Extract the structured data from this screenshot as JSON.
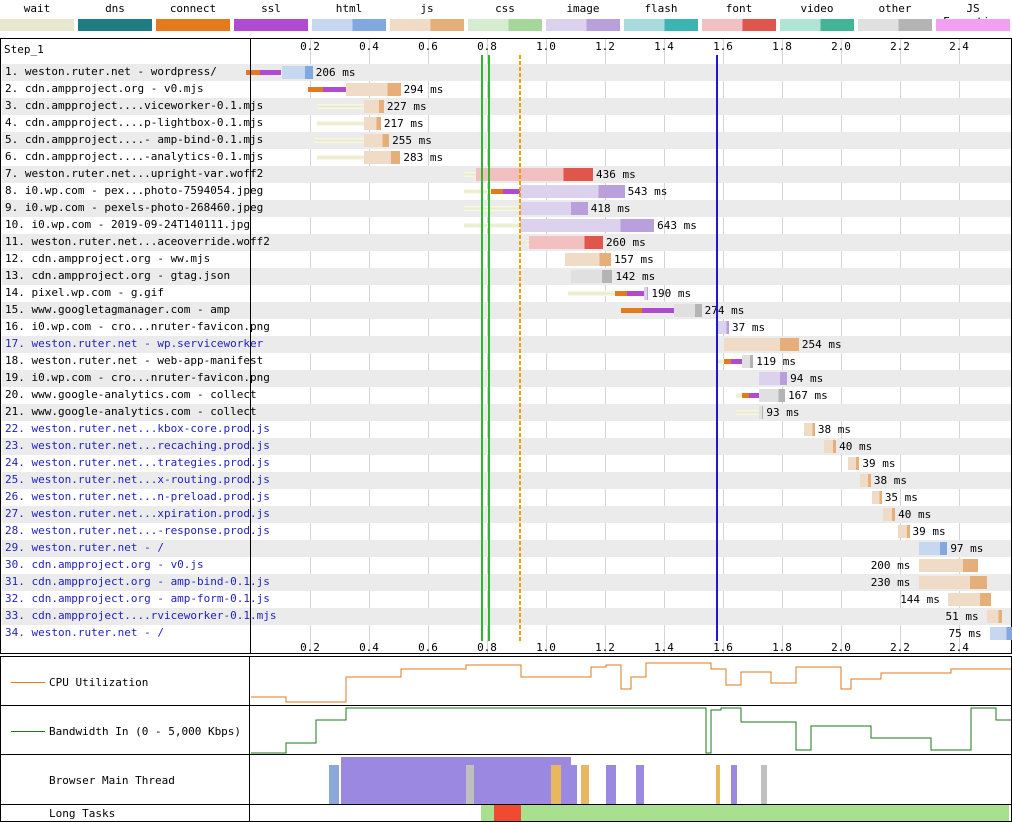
{
  "legend": [
    {
      "label": "wait",
      "color": "#e8e8d0",
      "color2": "#e8e8d0"
    },
    {
      "label": "dns",
      "color": "#1f7c83",
      "color2": "#1f7c83"
    },
    {
      "label": "connect",
      "color": "#e47a1c",
      "color2": "#e47a1c"
    },
    {
      "label": "ssl",
      "color": "#b04ad0",
      "color2": "#b04ad0"
    },
    {
      "label": "html",
      "color": "#c6d7f0",
      "color2": "#82a8e0"
    },
    {
      "label": "js",
      "color": "#f0dcc6",
      "color2": "#e6ae78"
    },
    {
      "label": "css",
      "color": "#d6ecd0",
      "color2": "#a6d79a"
    },
    {
      "label": "image",
      "color": "#ddd2ee",
      "color2": "#b9a0dc"
    },
    {
      "label": "flash",
      "color": "#a8dcdc",
      "color2": "#3cb4b4"
    },
    {
      "label": "font",
      "color": "#f2c0c0",
      "color2": "#e0554c"
    },
    {
      "label": "video",
      "color": "#b0e4d4",
      "color2": "#42b498"
    },
    {
      "label": "other",
      "color": "#e0e0e0",
      "color2": "#b4b4b4"
    },
    {
      "label": "JS Execution",
      "color": "#f2a0f2",
      "color2": "#f2a0f2"
    }
  ],
  "step_label": "Step_1",
  "axis_ticks": [
    "0.2",
    "0.4",
    "0.6",
    "0.8",
    "1.0",
    "1.2",
    "1.4",
    "1.6",
    "1.8",
    "2.0",
    "2.2",
    "2.4"
  ],
  "requests": [
    {
      "label": "1. weston.ruter.net - wordpress/",
      "blue": false,
      "start": 0.0,
      "dur": 206,
      "type": "html",
      "pre": [
        0.0,
        0.12,
        0.1
      ],
      "dur_label": "206 ms"
    },
    {
      "label": "2. cdn.ampproject.org - v0.mjs",
      "blue": false,
      "start": 0.21,
      "dur": 294,
      "type": "js",
      "pre": [
        0.21,
        0.13,
        0.32
      ],
      "dur_label": "294 ms"
    },
    {
      "label": "3. cdn.ampproject....viceworker-0.1.mjs",
      "blue": false,
      "start": 0.22,
      "dur": 227,
      "type": "js",
      "pre": [
        0.22,
        0.0,
        0.38
      ],
      "dur_label": "227 ms"
    },
    {
      "label": "4. cdn.ampproject....p-lightbox-0.1.mjs",
      "blue": false,
      "start": 0.22,
      "dur": 217,
      "type": "js",
      "pre": [
        0.22,
        0.0,
        0.38
      ],
      "dur_label": "217 ms"
    },
    {
      "label": "5. cdn.ampproject....- amp-bind-0.1.mjs",
      "blue": false,
      "start": 0.21,
      "dur": 255,
      "type": "js",
      "pre": [
        0.21,
        0.0,
        0.38
      ],
      "dur_label": "255 ms"
    },
    {
      "label": "6. cdn.ampproject....-analytics-0.1.mjs",
      "blue": false,
      "start": 0.22,
      "dur": 283,
      "type": "js",
      "pre": [
        0.22,
        0.0,
        0.38
      ],
      "dur_label": "283 ms"
    },
    {
      "label": "7. weston.ruter.net...upright-var.woff2",
      "blue": false,
      "start": 0.72,
      "dur": 436,
      "type": "font",
      "pre": [
        0.72,
        0.0,
        0.76
      ],
      "dur_label": "436 ms"
    },
    {
      "label": "8. i0.wp.com - pex...photo-7594054.jpeg",
      "blue": false,
      "start": 0.72,
      "dur": 543,
      "type": "image",
      "pre": [
        0.72,
        0.1,
        0.91
      ],
      "dur_label": "543 ms"
    },
    {
      "label": "9. i0.wp.com - pexels-photo-268460.jpeg",
      "blue": false,
      "start": 0.72,
      "dur": 418,
      "type": "image",
      "pre": [
        0.72,
        0.0,
        0.91
      ],
      "dur_label": "418 ms"
    },
    {
      "label": "10. i0.wp.com - 2019-09-24T140111.jpg",
      "blue": false,
      "start": 0.72,
      "dur": 643,
      "type": "image",
      "pre": [
        0.72,
        0.0,
        0.91
      ],
      "dur_label": "643 ms"
    },
    {
      "label": "11. weston.ruter.net...aceoverride.woff2",
      "blue": false,
      "start": 0.93,
      "dur": 260,
      "type": "font",
      "pre": [
        0.93,
        0.0,
        0.94
      ],
      "dur_label": "260 ms"
    },
    {
      "label": "12. cdn.ampproject.org - ww.mjs",
      "blue": false,
      "start": 1.06,
      "dur": 157,
      "type": "js",
      "pre": [
        1.06,
        0.0,
        1.06
      ],
      "dur_label": "157 ms"
    },
    {
      "label": "13. cdn.ampproject.org - gtag.json",
      "blue": false,
      "start": 1.08,
      "dur": 142,
      "type": "other",
      "pre": [
        1.08,
        0.0,
        1.08
      ],
      "dur_label": "142 ms"
    },
    {
      "label": "14. pixel.wp.com - g.gif",
      "blue": false,
      "start": 1.07,
      "dur": 190,
      "type": "image",
      "pre": [
        1.07,
        0.1,
        1.33
      ],
      "dur_label": "190 ms"
    },
    {
      "label": "15. www.googletagmanager.com - amp",
      "blue": false,
      "start": 1.25,
      "dur": 274,
      "type": "other",
      "pre": [
        1.25,
        0.18,
        1.43
      ],
      "dur_label": "274 ms"
    },
    {
      "label": "16. i0.wp.com - cro...nruter-favicon.png",
      "blue": false,
      "start": 1.58,
      "dur": 37,
      "type": "image",
      "pre": [
        1.58,
        0.0,
        1.58
      ],
      "dur_label": "37 ms"
    },
    {
      "label": "17. weston.ruter.net - wp.serviceworker",
      "blue": true,
      "start": 1.6,
      "dur": 254,
      "type": "js",
      "pre": [
        1.6,
        0.0,
        1.6
      ],
      "dur_label": "254 ms"
    },
    {
      "label": "18. weston.ruter.net - web-app-manifest",
      "blue": false,
      "start": 1.58,
      "dur": 119,
      "type": "other",
      "pre": [
        1.58,
        0.06,
        1.66
      ],
      "dur_label": "119 ms"
    },
    {
      "label": "19. i0.wp.com - cro...nruter-favicon.png",
      "blue": false,
      "start": 1.72,
      "dur": 94,
      "type": "image",
      "pre": [
        1.72,
        0.0,
        1.72
      ],
      "dur_label": "94 ms"
    },
    {
      "label": "20. www.google-analytics.com - collect",
      "blue": false,
      "start": 1.64,
      "dur": 167,
      "type": "other",
      "pre": [
        1.64,
        0.06,
        1.72
      ],
      "dur_label": "167 ms"
    },
    {
      "label": "21. www.google-analytics.com - collect",
      "blue": false,
      "start": 1.64,
      "dur": 93,
      "type": "other",
      "pre": [
        1.64,
        0.0,
        1.72
      ],
      "dur_label": "93 ms"
    },
    {
      "label": "22. weston.ruter.net...kbox-core.prod.js",
      "blue": true,
      "start": 1.87,
      "dur": 38,
      "type": "js",
      "pre": [
        1.87,
        0.0,
        1.87
      ],
      "dur_label": "38 ms"
    },
    {
      "label": "23. weston.ruter.net...recaching.prod.js",
      "blue": true,
      "start": 1.94,
      "dur": 40,
      "type": "js",
      "pre": [
        1.94,
        0.0,
        1.94
      ],
      "dur_label": "40 ms"
    },
    {
      "label": "24. weston.ruter.net...trategies.prod.js",
      "blue": true,
      "start": 2.02,
      "dur": 39,
      "type": "js",
      "pre": [
        2.02,
        0.0,
        2.02
      ],
      "dur_label": "39 ms"
    },
    {
      "label": "25. weston.ruter.net...x-routing.prod.js",
      "blue": true,
      "start": 2.06,
      "dur": 38,
      "type": "js",
      "pre": [
        2.06,
        0.0,
        2.06
      ],
      "dur_label": "38 ms"
    },
    {
      "label": "26. weston.ruter.net...n-preload.prod.js",
      "blue": true,
      "start": 2.1,
      "dur": 35,
      "type": "js",
      "pre": [
        2.1,
        0.0,
        2.1
      ],
      "dur_label": "35 ms"
    },
    {
      "label": "27. weston.ruter.net...xpiration.prod.js",
      "blue": true,
      "start": 2.14,
      "dur": 40,
      "type": "js",
      "pre": [
        2.14,
        0.0,
        2.14
      ],
      "dur_label": "40 ms"
    },
    {
      "label": "28. weston.ruter.net...-response.prod.js",
      "blue": true,
      "start": 2.19,
      "dur": 39,
      "type": "js",
      "pre": [
        2.19,
        0.0,
        2.19
      ],
      "dur_label": "39 ms"
    },
    {
      "label": "29. weston.ruter.net - /",
      "blue": true,
      "start": 2.26,
      "dur": 97,
      "type": "html",
      "pre": [
        2.26,
        0.0,
        2.26
      ],
      "dur_label": "97 ms"
    },
    {
      "label": "30. cdn.ampproject.org - v0.js",
      "blue": true,
      "start": 2.26,
      "dur": 200,
      "type": "js",
      "pre": [
        2.26,
        0.0,
        2.26
      ],
      "dur_label": "200 ms",
      "label_left": true
    },
    {
      "label": "31. cdn.ampproject.org - amp-bind-0.1.js",
      "blue": true,
      "start": 2.26,
      "dur": 230,
      "type": "js",
      "pre": [
        2.26,
        0.0,
        2.26
      ],
      "dur_label": "230 ms",
      "label_left": true
    },
    {
      "label": "32. cdn.ampproject.org - amp-form-0.1.js",
      "blue": true,
      "start": 2.36,
      "dur": 144,
      "type": "js",
      "pre": [
        2.36,
        0.0,
        2.36
      ],
      "dur_label": "144 ms",
      "label_left": true
    },
    {
      "label": "33. cdn.ampproject....rviceworker-0.1.mjs",
      "blue": true,
      "start": 2.49,
      "dur": 51,
      "type": "js",
      "pre": [
        2.49,
        0.0,
        2.49
      ],
      "dur_label": "51 ms",
      "label_left": true
    },
    {
      "label": "34. weston.ruter.net - /",
      "blue": true,
      "start": 2.5,
      "dur": 75,
      "type": "html",
      "pre": [
        2.5,
        0.0,
        2.5
      ],
      "dur_label": "75 ms",
      "label_left": true
    }
  ],
  "markers": [
    {
      "t": 0.78,
      "color": "#2eb82e",
      "w": 2
    },
    {
      "t": 0.805,
      "color": "#2eb82e",
      "w": 2
    },
    {
      "t": 0.91,
      "color": "#f0a000",
      "w": 2,
      "dashed": true
    },
    {
      "t": 1.575,
      "color": "#1a1ad6",
      "w": 2
    }
  ],
  "panels": {
    "cpu": {
      "label": "CPU Utilization",
      "line_color": "#e07a1c"
    },
    "bandwidth": {
      "label": "Bandwidth In (0 - 5,000 Kbps)",
      "line_color": "#1a7a1a"
    },
    "main_thread": {
      "label": "Browser Main Thread"
    },
    "long_tasks": {
      "label": "Long Tasks"
    }
  }
}
